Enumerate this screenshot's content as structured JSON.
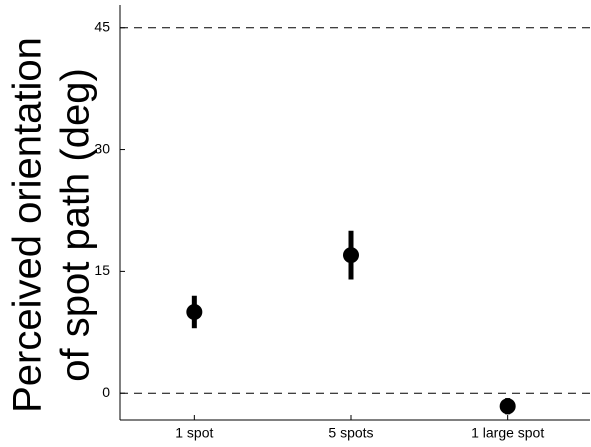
{
  "chart_data": {
    "type": "errorbar",
    "ylabel": [
      "Perceived orientation",
      "of spot path (deg)"
    ],
    "categories": [
      "1 spot",
      "5 spots",
      "1 large spot"
    ],
    "values": [
      10,
      17,
      -1.6
    ],
    "errors": [
      2,
      3,
      1
    ],
    "color": "#000000",
    "ylim": [
      -3.3,
      47.8
    ],
    "yticks": [
      0,
      15,
      30,
      45
    ],
    "reference_lines": [
      0,
      45
    ]
  }
}
